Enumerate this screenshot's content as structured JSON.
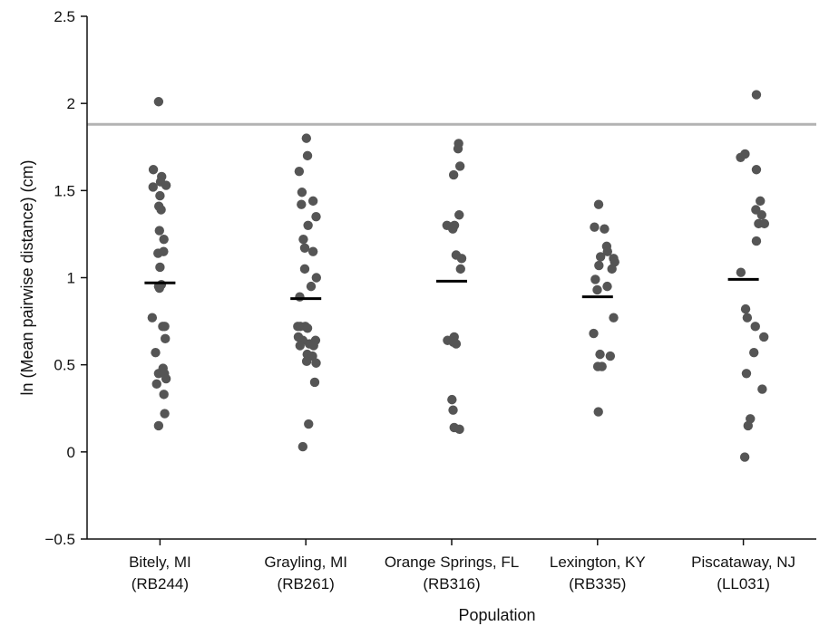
{
  "chart_data": {
    "type": "scatter",
    "title": "",
    "xlabel": "Population",
    "ylabel": "ln (Mean pairwise distance) (cm)",
    "ylim": [
      -0.5,
      2.5
    ],
    "yticks": [
      -0.5,
      0,
      0.5,
      1,
      1.5,
      2,
      2.5
    ],
    "ytick_labels": [
      "−0.5",
      "0",
      "0.5",
      "1",
      "1.5",
      "2",
      "2.5"
    ],
    "grid": false,
    "reference_line": {
      "y": 1.88,
      "color": "#b3b3b3"
    },
    "point_color": "#555555",
    "mean_color": "#000000",
    "categories": [
      {
        "label_line1": "Bitely, MI",
        "label_line2": "(RB244)",
        "mean": 0.97,
        "points": [
          {
            "dx": -0.05,
            "y": 2.01
          },
          {
            "dx": -0.24,
            "y": 1.62
          },
          {
            "dx": 0.06,
            "y": 1.58
          },
          {
            "dx": 0.02,
            "y": 1.55
          },
          {
            "dx": -0.25,
            "y": 1.52
          },
          {
            "dx": 0.22,
            "y": 1.53
          },
          {
            "dx": 0.0,
            "y": 1.47
          },
          {
            "dx": -0.04,
            "y": 1.41
          },
          {
            "dx": 0.04,
            "y": 1.39
          },
          {
            "dx": -0.02,
            "y": 1.27
          },
          {
            "dx": 0.14,
            "y": 1.22
          },
          {
            "dx": -0.07,
            "y": 1.14
          },
          {
            "dx": 0.13,
            "y": 1.15
          },
          {
            "dx": 0.0,
            "y": 1.06
          },
          {
            "dx": -0.05,
            "y": 0.95
          },
          {
            "dx": 0.05,
            "y": 0.96
          },
          {
            "dx": -0.02,
            "y": 0.94
          },
          {
            "dx": -0.28,
            "y": 0.77
          },
          {
            "dx": 0.1,
            "y": 0.72
          },
          {
            "dx": 0.17,
            "y": 0.72
          },
          {
            "dx": 0.19,
            "y": 0.65
          },
          {
            "dx": -0.16,
            "y": 0.57
          },
          {
            "dx": 0.11,
            "y": 0.48
          },
          {
            "dx": -0.05,
            "y": 0.45
          },
          {
            "dx": 0.16,
            "y": 0.45
          },
          {
            "dx": 0.22,
            "y": 0.42
          },
          {
            "dx": -0.12,
            "y": 0.39
          },
          {
            "dx": 0.14,
            "y": 0.33
          },
          {
            "dx": 0.17,
            "y": 0.22
          },
          {
            "dx": -0.05,
            "y": 0.15
          }
        ]
      },
      {
        "label_line1": "Grayling, MI",
        "label_line2": "(RB261)",
        "mean": 0.88,
        "points": [
          {
            "dx": 0.02,
            "y": 1.8
          },
          {
            "dx": 0.06,
            "y": 1.7
          },
          {
            "dx": -0.24,
            "y": 1.61
          },
          {
            "dx": -0.14,
            "y": 1.49
          },
          {
            "dx": 0.26,
            "y": 1.44
          },
          {
            "dx": -0.16,
            "y": 1.42
          },
          {
            "dx": 0.37,
            "y": 1.35
          },
          {
            "dx": 0.08,
            "y": 1.3
          },
          {
            "dx": -0.09,
            "y": 1.22
          },
          {
            "dx": -0.04,
            "y": 1.17
          },
          {
            "dx": 0.26,
            "y": 1.15
          },
          {
            "dx": -0.04,
            "y": 1.05
          },
          {
            "dx": 0.38,
            "y": 1.0
          },
          {
            "dx": 0.19,
            "y": 0.95
          },
          {
            "dx": -0.22,
            "y": 0.89
          },
          {
            "dx": -0.29,
            "y": 0.72
          },
          {
            "dx": -0.2,
            "y": 0.72
          },
          {
            "dx": -0.02,
            "y": 0.72
          },
          {
            "dx": 0.06,
            "y": 0.71
          },
          {
            "dx": -0.27,
            "y": 0.66
          },
          {
            "dx": -0.11,
            "y": 0.64
          },
          {
            "dx": 0.35,
            "y": 0.64
          },
          {
            "dx": -0.21,
            "y": 0.61
          },
          {
            "dx": 0.13,
            "y": 0.62
          },
          {
            "dx": 0.28,
            "y": 0.61
          },
          {
            "dx": 0.05,
            "y": 0.56
          },
          {
            "dx": 0.24,
            "y": 0.55
          },
          {
            "dx": 0.03,
            "y": 0.52
          },
          {
            "dx": 0.37,
            "y": 0.51
          },
          {
            "dx": 0.32,
            "y": 0.4
          },
          {
            "dx": 0.1,
            "y": 0.16
          },
          {
            "dx": -0.11,
            "y": 0.03
          }
        ]
      },
      {
        "label_line1": "Orange Springs, FL",
        "label_line2": "(RB316)",
        "mean": 0.98,
        "points": [
          {
            "dx": 0.25,
            "y": 1.77
          },
          {
            "dx": 0.23,
            "y": 1.74
          },
          {
            "dx": 0.3,
            "y": 1.64
          },
          {
            "dx": 0.07,
            "y": 1.59
          },
          {
            "dx": 0.27,
            "y": 1.36
          },
          {
            "dx": -0.17,
            "y": 1.3
          },
          {
            "dx": 0.1,
            "y": 1.3
          },
          {
            "dx": 0.04,
            "y": 1.28
          },
          {
            "dx": 0.16,
            "y": 1.13
          },
          {
            "dx": 0.36,
            "y": 1.11
          },
          {
            "dx": 0.32,
            "y": 1.05
          },
          {
            "dx": -0.15,
            "y": 0.64
          },
          {
            "dx": 0.09,
            "y": 0.66
          },
          {
            "dx": 0.06,
            "y": 0.63
          },
          {
            "dx": 0.16,
            "y": 0.62
          },
          {
            "dx": 0.01,
            "y": 0.3
          },
          {
            "dx": 0.05,
            "y": 0.24
          },
          {
            "dx": 0.09,
            "y": 0.14
          },
          {
            "dx": 0.28,
            "y": 0.13
          }
        ]
      },
      {
        "label_line1": "Lexington, KY",
        "label_line2": "(RB335)",
        "mean": 0.89,
        "points": [
          {
            "dx": 0.04,
            "y": 1.42
          },
          {
            "dx": -0.11,
            "y": 1.29
          },
          {
            "dx": 0.25,
            "y": 1.28
          },
          {
            "dx": 0.33,
            "y": 1.18
          },
          {
            "dx": 0.36,
            "y": 1.15
          },
          {
            "dx": 0.11,
            "y": 1.12
          },
          {
            "dx": 0.58,
            "y": 1.11
          },
          {
            "dx": 0.62,
            "y": 1.09
          },
          {
            "dx": 0.05,
            "y": 1.07
          },
          {
            "dx": 0.52,
            "y": 1.05
          },
          {
            "dx": -0.08,
            "y": 0.99
          },
          {
            "dx": 0.35,
            "y": 0.95
          },
          {
            "dx": -0.01,
            "y": 0.93
          },
          {
            "dx": 0.58,
            "y": 0.77
          },
          {
            "dx": -0.14,
            "y": 0.68
          },
          {
            "dx": 0.09,
            "y": 0.56
          },
          {
            "dx": 0.46,
            "y": 0.55
          },
          {
            "dx": 0.01,
            "y": 0.49
          },
          {
            "dx": 0.16,
            "y": 0.49
          },
          {
            "dx": 0.03,
            "y": 0.23
          }
        ]
      },
      {
        "label_line1": "Piscataway, NJ",
        "label_line2": "(LL031)",
        "mean": 0.99,
        "points": [
          {
            "dx": 0.47,
            "y": 2.05
          },
          {
            "dx": -0.1,
            "y": 1.69
          },
          {
            "dx": 0.06,
            "y": 1.71
          },
          {
            "dx": 0.47,
            "y": 1.62
          },
          {
            "dx": 0.61,
            "y": 1.44
          },
          {
            "dx": 0.45,
            "y": 1.39
          },
          {
            "dx": 0.66,
            "y": 1.36
          },
          {
            "dx": 0.55,
            "y": 1.31
          },
          {
            "dx": 0.76,
            "y": 1.31
          },
          {
            "dx": 0.47,
            "y": 1.21
          },
          {
            "dx": -0.09,
            "y": 1.03
          },
          {
            "dx": 0.08,
            "y": 0.82
          },
          {
            "dx": 0.14,
            "y": 0.77
          },
          {
            "dx": 0.43,
            "y": 0.72
          },
          {
            "dx": 0.74,
            "y": 0.66
          },
          {
            "dx": 0.38,
            "y": 0.57
          },
          {
            "dx": 0.11,
            "y": 0.45
          },
          {
            "dx": 0.68,
            "y": 0.36
          },
          {
            "dx": 0.25,
            "y": 0.19
          },
          {
            "dx": 0.17,
            "y": 0.15
          },
          {
            "dx": 0.05,
            "y": -0.03
          }
        ]
      }
    ]
  }
}
